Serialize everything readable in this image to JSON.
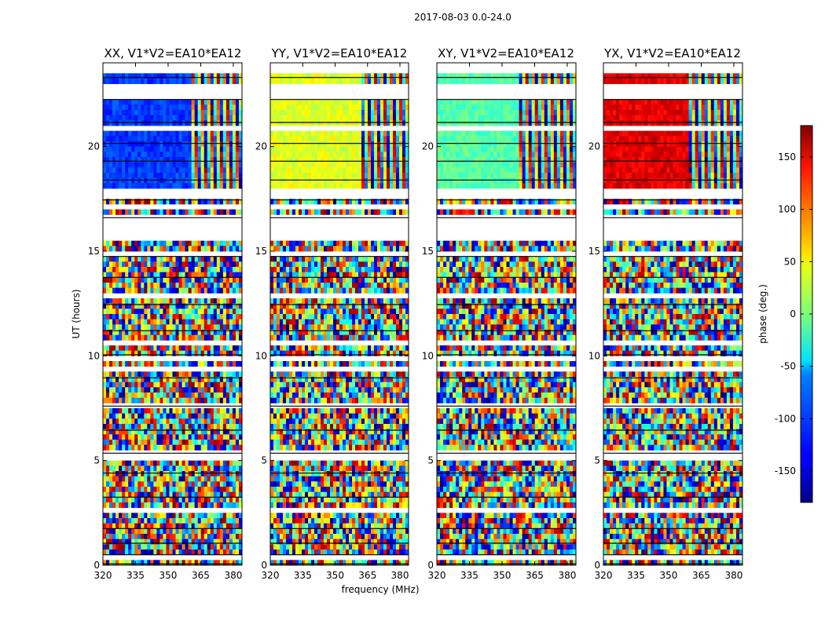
{
  "chart_data": {
    "type": "heatmap",
    "suptitle": "2017-08-03 0.0-24.0",
    "xlabel": "frequency (MHz)",
    "ylabel": "UT (hours)",
    "xlim": [
      320,
      384
    ],
    "ylim": [
      0,
      24
    ],
    "xticks": [
      320,
      335,
      350,
      365,
      380
    ],
    "yticks": [
      0,
      5,
      10,
      15,
      20
    ],
    "panels": [
      {
        "title": "XX, V1*V2=EA10*EA12",
        "base_phase": -115,
        "transition_freq": 361
      },
      {
        "title": "YY, V1*V2=EA10*EA12",
        "base_phase": 35,
        "transition_freq": 362
      },
      {
        "title": "XY, V1*V2=EA10*EA12",
        "base_phase": -15,
        "transition_freq": 358
      },
      {
        "title": "YX, V1*V2=EA10*EA12",
        "base_phase": 145,
        "transition_freq": 360
      }
    ],
    "colorbar": {
      "label": "phase (deg.)",
      "range": [
        -180,
        180
      ],
      "ticks": [
        -150,
        -100,
        -50,
        0,
        50,
        100,
        150
      ],
      "colormap": "jet"
    },
    "flagged_ut_ranges": [
      [
        0.06,
        0.1
      ],
      [
        0.2,
        0.24
      ],
      [
        0.35,
        0.4
      ],
      [
        0.5,
        0.55
      ],
      [
        0.75,
        0.8
      ],
      [
        0.93,
        0.98
      ],
      [
        1.05,
        1.1
      ],
      [
        1.25,
        1.3
      ],
      [
        1.5,
        1.55
      ],
      [
        1.75,
        1.8
      ],
      [
        2.6,
        2.63
      ],
      [
        2.9,
        3.05
      ],
      [
        3.25,
        3.35
      ],
      [
        3.55,
        3.62
      ],
      [
        3.9,
        3.95
      ],
      [
        4.4,
        4.45
      ],
      [
        4.8,
        4.85
      ],
      [
        5.1,
        5.18
      ],
      [
        5.35,
        5.4
      ],
      [
        5.75,
        5.8
      ],
      [
        6.15,
        6.2
      ],
      [
        6.45,
        6.5
      ],
      [
        6.7,
        6.85
      ],
      [
        7.15,
        7.2
      ],
      [
        7.6,
        7.65
      ],
      [
        8.05,
        8.1
      ],
      [
        8.5,
        8.55
      ],
      [
        8.95,
        9.0
      ],
      [
        9.35,
        9.4
      ],
      [
        9.85,
        10.0
      ],
      [
        10.05,
        10.08
      ],
      [
        10.5,
        10.75
      ],
      [
        10.8,
        10.85
      ],
      [
        11.2,
        11.25
      ],
      [
        11.7,
        11.75
      ],
      [
        12.0,
        12.05
      ],
      [
        12.45,
        12.5
      ],
      [
        12.85,
        12.9
      ],
      [
        13.3,
        13.35
      ],
      [
        13.75,
        13.8
      ],
      [
        14.2,
        14.25
      ],
      [
        14.45,
        14.5
      ],
      [
        14.75,
        15.1
      ],
      [
        15.4,
        16.4
      ],
      [
        16.45,
        16.55
      ],
      [
        16.6,
        16.7
      ],
      [
        16.75,
        16.85
      ],
      [
        16.9,
        17.3
      ],
      [
        17.45,
        17.75
      ],
      [
        17.85,
        17.92
      ],
      [
        18.05,
        18.12
      ],
      [
        18.4,
        18.55
      ],
      [
        18.75,
        18.82
      ],
      [
        19.0,
        19.05
      ],
      [
        19.3,
        19.35
      ],
      [
        19.55,
        19.6
      ],
      [
        19.9,
        20.0
      ],
      [
        20.15,
        20.2
      ],
      [
        20.45,
        20.55
      ],
      [
        20.85,
        20.9
      ],
      [
        21.15,
        21.2
      ],
      [
        21.5,
        21.6
      ],
      [
        21.95,
        22.0
      ],
      [
        22.25,
        22.65
      ],
      [
        22.85,
        22.95
      ],
      [
        23.05,
        23.12
      ],
      [
        23.3,
        23.35
      ],
      [
        23.6,
        23.65
      ],
      [
        23.85,
        23.92
      ]
    ]
  }
}
